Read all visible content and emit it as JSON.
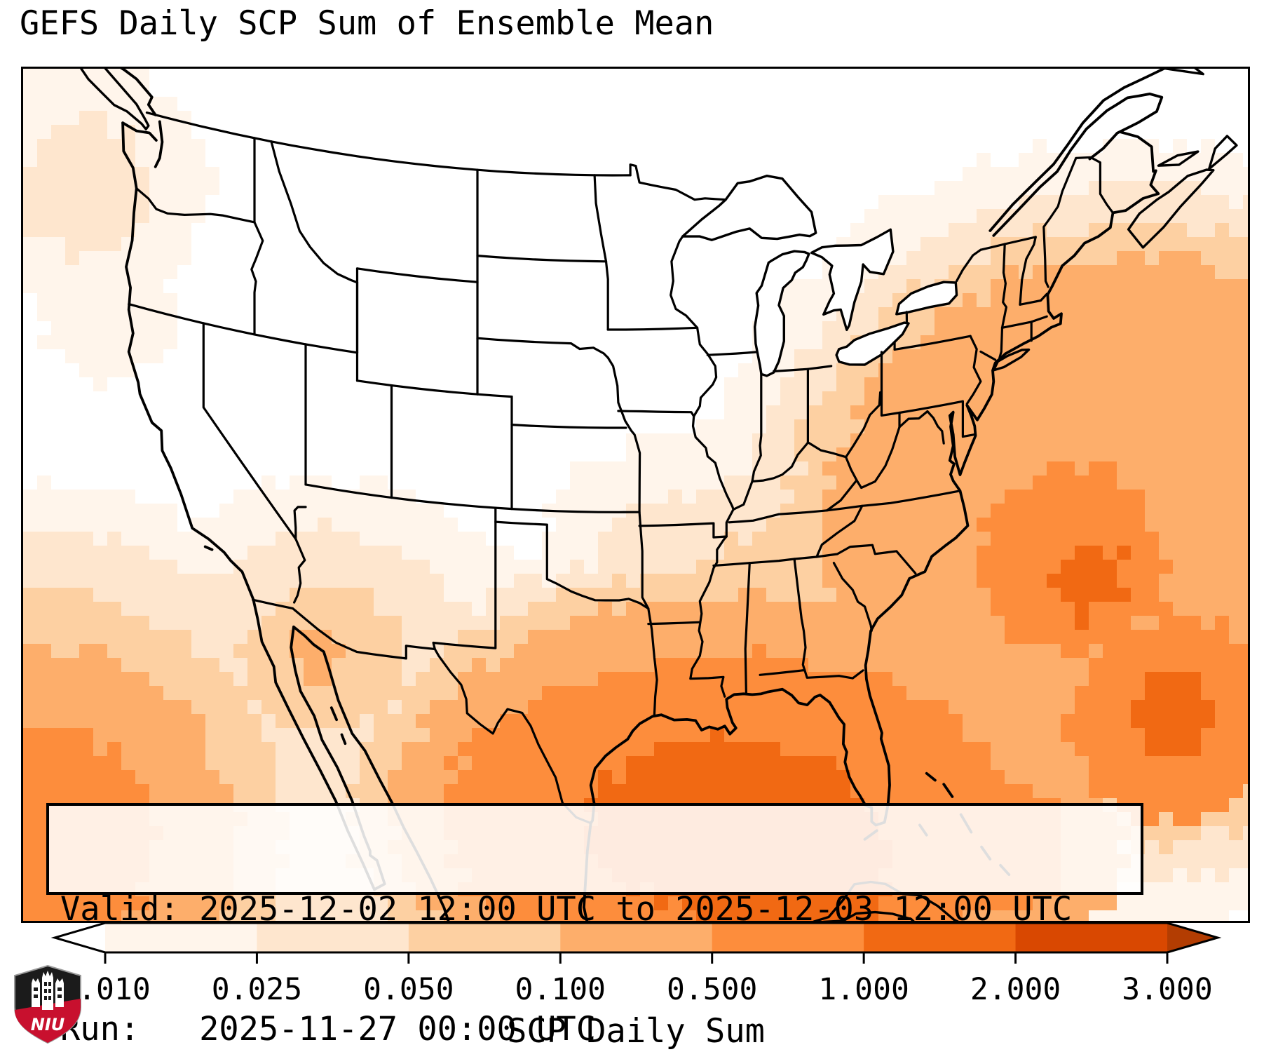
{
  "title": "GEFS Daily SCP Sum of Ensemble Mean",
  "info_box": {
    "valid_line": "Valid: 2025-12-02 12:00 UTC to 2025-12-03 12:00 UTC",
    "run_line": "Run:   2025-11-27 00:00 UTC"
  },
  "colorbar": {
    "label": "SCP Daily Sum",
    "ticks": [
      "0.010",
      "0.025",
      "0.050",
      "0.100",
      "0.500",
      "1.000",
      "2.000",
      "3.000"
    ],
    "segment_colors": [
      "#fff5eb",
      "#fee6ce",
      "#fdd0a2",
      "#fdae6b",
      "#fd8d3c",
      "#f16913",
      "#d94801"
    ],
    "under_color": "#ffffff",
    "over_color": "#b33d02",
    "outline_color": "#000000"
  },
  "map": {
    "background": "#ffffff",
    "line_color": "#000000",
    "field_colors": [
      "#fff5eb",
      "#fee6ce",
      "#fdd0a2",
      "#fdae6b",
      "#fd8d3c",
      "#f16913",
      "#d94801"
    ],
    "scp_blobs": [
      [
        -66.0,
        33.5,
        1.05,
        0.95,
        [
          [
            4,
            415
          ],
          [
            3,
            468
          ],
          [
            2,
            525
          ],
          [
            1,
            592
          ]
        ]
      ],
      [
        -69.5,
        33.2,
        1,
        1,
        [
          [
            5,
            135
          ]
        ]
      ],
      [
        -68.3,
        32.2,
        1,
        1,
        [
          [
            6,
            50
          ]
        ]
      ],
      [
        -63.5,
        26.5,
        1,
        1,
        [
          [
            6,
            60
          ],
          [
            5,
            150
          ]
        ]
      ],
      [
        -73.2,
        23.3,
        1,
        1,
        [
          [
            5,
            85
          ],
          [
            4,
            165
          ]
        ]
      ],
      [
        -89.5,
        25.8,
        1.35,
        0.8,
        [
          [
            6,
            150
          ],
          [
            5,
            300
          ]
        ]
      ],
      [
        -86.3,
        24.0,
        1.2,
        1,
        [
          [
            6,
            125
          ]
        ]
      ],
      [
        -89.5,
        26.3,
        1.35,
        0.85,
        [
          [
            4,
            355
          ],
          [
            3,
            395
          ],
          [
            2,
            432
          ],
          [
            1,
            470
          ]
        ]
      ],
      [
        -95.8,
        27.2,
        1,
        1,
        [
          [
            5,
            115
          ]
        ]
      ],
      [
        -84.5,
        32.3,
        1.35,
        1,
        [
          [
            3,
            155
          ],
          [
            2,
            235
          ],
          [
            1,
            320
          ]
        ]
      ],
      [
        -81.2,
        32.6,
        1,
        1,
        [
          [
            4,
            70
          ]
        ]
      ],
      [
        -87.9,
        30.9,
        1,
        1,
        [
          [
            4,
            75
          ]
        ]
      ],
      [
        -85.2,
        30.0,
        1.3,
        1,
        [
          [
            4,
            85
          ]
        ]
      ],
      [
        -82.0,
        28.3,
        1,
        1.25,
        [
          [
            4,
            115
          ],
          [
            3,
            160
          ]
        ]
      ],
      [
        -81.3,
        24.6,
        1.5,
        1,
        [
          [
            5,
            95
          ]
        ]
      ],
      [
        -91.5,
        33.8,
        1,
        1,
        [
          [
            2,
            150
          ],
          [
            1,
            240
          ]
        ]
      ],
      [
        -93.5,
        31.5,
        1,
        1,
        [
          [
            3,
            55
          ],
          [
            2,
            125
          ]
        ]
      ],
      [
        -99.3,
        29.6,
        1.25,
        0.85,
        [
          [
            3,
            120
          ],
          [
            2,
            210
          ],
          [
            1,
            285
          ]
        ]
      ],
      [
        -102.5,
        31.8,
        1,
        1,
        [
          [
            2,
            70
          ],
          [
            1,
            145
          ]
        ]
      ],
      [
        -97.5,
        32.9,
        1,
        1,
        [
          [
            2,
            60
          ],
          [
            1,
            125
          ]
        ]
      ],
      [
        -99.3,
        24.3,
        1,
        1,
        [
          [
            4,
            95
          ],
          [
            3,
            180
          ],
          [
            2,
            258
          ],
          [
            1,
            332
          ]
        ]
      ],
      [
        -112.9,
        30.8,
        1,
        0.9,
        [
          [
            3,
            118
          ],
          [
            2,
            208
          ],
          [
            1,
            290
          ]
        ]
      ],
      [
        -113.3,
        31.1,
        1,
        1,
        [
          [
            4,
            38
          ]
        ]
      ],
      [
        -106.5,
        26.5,
        1,
        1,
        [
          [
            2,
            170
          ],
          [
            1,
            262
          ]
        ]
      ],
      [
        -104.5,
        23.3,
        1,
        1,
        [
          [
            3,
            92
          ],
          [
            2,
            172
          ]
        ]
      ],
      [
        -129.8,
        21.8,
        1,
        1,
        [
          [
            5,
            172
          ],
          [
            4,
            282
          ],
          [
            3,
            362
          ],
          [
            2,
            442
          ],
          [
            1,
            512
          ]
        ]
      ],
      [
        -126.8,
        45.8,
        1,
        1,
        [
          [
            2,
            95
          ],
          [
            1,
            178
          ]
        ]
      ],
      [
        -124.6,
        47.9,
        1,
        1,
        [
          [
            1,
            72
          ]
        ]
      ],
      [
        -125.6,
        41.3,
        1,
        1,
        [
          [
            1,
            92
          ]
        ]
      ]
    ]
  },
  "logo": {
    "text": "NIU",
    "shield_dark": "#1b1b1b",
    "shield_red": "#c8102e",
    "shield_edge": "#9a9a9a"
  }
}
